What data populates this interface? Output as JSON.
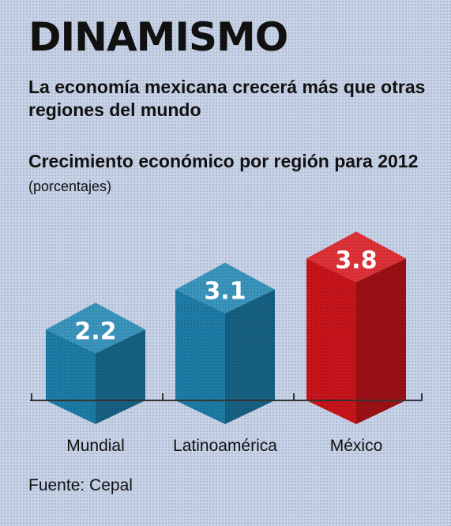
{
  "header": {
    "title": "DINAMISMO",
    "subtitle": "La economía mexicana crecerá más que otras regiones del mundo",
    "chart_heading": "Crecimiento económico por región para 2012",
    "chart_unit": "(porcentajes)"
  },
  "chart_data": {
    "type": "bar",
    "title": "Crecimiento económico por región para 2012",
    "ylabel": "(porcentajes)",
    "categories": [
      "Mundial",
      "Latinoamérica",
      "México"
    ],
    "values": [
      2.2,
      3.1,
      3.8
    ],
    "value_labels": [
      "2.2",
      "3.1",
      "3.8"
    ],
    "ylim": [
      0,
      4
    ],
    "grid": false,
    "colors": [
      "#1f86b4",
      "#1f86b4",
      "#d9161d"
    ]
  },
  "source": "Fuente: Cepal"
}
